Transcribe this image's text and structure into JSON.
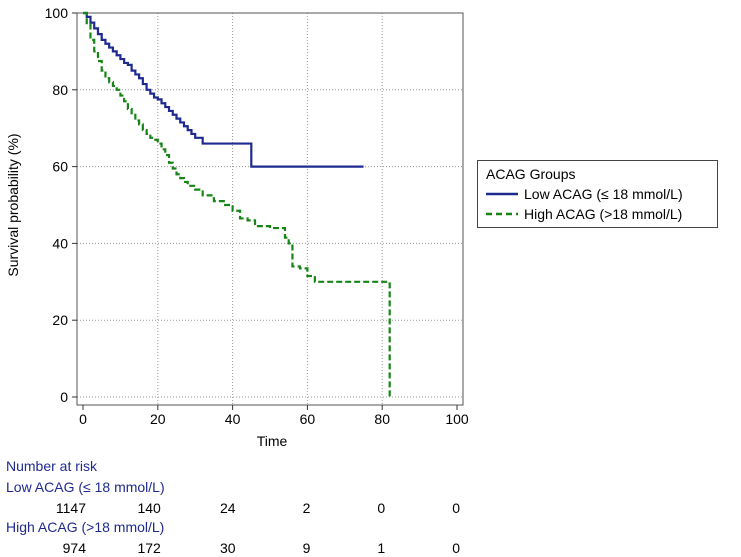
{
  "chart_data": {
    "type": "line",
    "subtype": "kaplan-meier",
    "title": "",
    "xlabel": "Time",
    "ylabel": "Survival probability (%)",
    "xlim": [
      0,
      100
    ],
    "ylim": [
      0,
      100
    ],
    "xticks": [
      0,
      20,
      40,
      60,
      80,
      100
    ],
    "yticks": [
      0,
      20,
      40,
      60,
      80,
      100
    ],
    "grid": true,
    "legend": {
      "title": "ACAG Groups",
      "placement": "right",
      "entries": [
        "Low ACAG (≤ 18 mmol/L)",
        "High ACAG (>18 mmol/L)"
      ]
    },
    "series": [
      {
        "name": "Low ACAG (≤ 18 mmol/L)",
        "color": "#1f2a8f",
        "style": "solid",
        "x": [
          0,
          1,
          2,
          3,
          4,
          5,
          6,
          7,
          8,
          9,
          10,
          11,
          12,
          13,
          14,
          15,
          16,
          17,
          18,
          19,
          20,
          21,
          22,
          23,
          24,
          25,
          26,
          27,
          28,
          29,
          30,
          32,
          35,
          40,
          45,
          45,
          50,
          60,
          70,
          75
        ],
        "y": [
          100,
          99,
          97.5,
          96,
          94.5,
          93,
          92,
          91,
          90,
          89,
          88,
          87,
          86.5,
          85,
          84,
          83,
          81.5,
          80,
          79,
          78,
          77.5,
          76.5,
          75.5,
          74.5,
          73.5,
          72.5,
          71.5,
          70.5,
          69.5,
          68.5,
          67.5,
          66,
          66,
          66,
          66,
          60,
          60,
          60,
          60,
          60
        ]
      },
      {
        "name": "High ACAG (>18 mmol/L)",
        "color": "#168516",
        "style": "dashed",
        "x": [
          0,
          1,
          2,
          3,
          4,
          5,
          6,
          7,
          8,
          9,
          10,
          11,
          12,
          13,
          14,
          15,
          16,
          17,
          18,
          19,
          20,
          21,
          22,
          23,
          24,
          25,
          26,
          27,
          28,
          30,
          32,
          35,
          38,
          40,
          42,
          44,
          46,
          50,
          54,
          55,
          56,
          58,
          60,
          62,
          70,
          80,
          82,
          82
        ],
        "y": [
          100,
          97,
          93,
          90,
          87.5,
          85,
          83,
          82,
          81,
          80,
          78.5,
          77,
          75,
          73.5,
          72,
          71,
          69.5,
          68.5,
          67.5,
          67,
          66,
          64.5,
          63,
          61,
          59.5,
          58,
          57,
          56,
          55,
          54,
          52.5,
          51,
          50,
          48.5,
          46.5,
          46,
          44.5,
          44,
          41.5,
          40,
          34,
          33.5,
          31.5,
          30,
          30,
          30,
          30,
          0
        ]
      }
    ],
    "risk_table": {
      "title": "Number at risk",
      "times": [
        0,
        20,
        40,
        60,
        80,
        100
      ],
      "groups": [
        {
          "label": "Low ACAG (≤ 18 mmol/L)",
          "values": [
            "1147",
            "140",
            "24",
            "2",
            "0",
            "0"
          ]
        },
        {
          "label": "High ACAG (>18 mmol/L)",
          "values": [
            "974",
            "172",
            "30",
            "9",
            "1",
            "0"
          ]
        }
      ]
    }
  }
}
